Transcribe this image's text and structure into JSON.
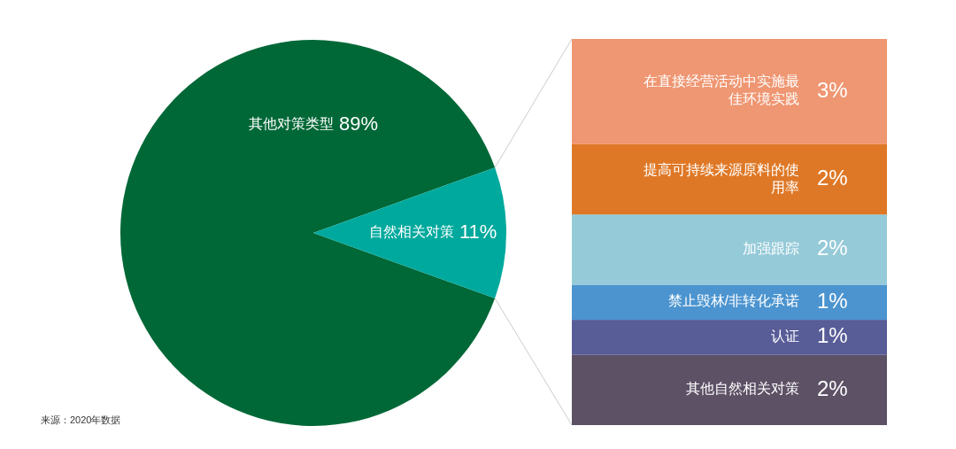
{
  "chart_data": [
    {
      "type": "pie",
      "categories": [
        "其他对策类型",
        "自然相关对策"
      ],
      "values": [
        89,
        11
      ],
      "colors": [
        "#006837",
        "#00a99d"
      ],
      "value_labels": [
        "89%",
        "11%"
      ],
      "annotations": [
        "来源：2020年数据"
      ]
    },
    {
      "type": "bar",
      "stacked": true,
      "categories": [
        null
      ],
      "series": [
        {
          "name": "其他自然相关对策",
          "color": "#5d5166",
          "values": [
            2
          ],
          "value_labels": [
            "2%"
          ]
        },
        {
          "name": "认证",
          "color": "#585c97",
          "values": [
            1
          ],
          "value_labels": [
            "1%"
          ]
        },
        {
          "name": "禁止毁林/非转化承诺",
          "color": "#4b94cf",
          "values": [
            1
          ],
          "value_labels": [
            "1%"
          ]
        },
        {
          "name": "加强跟踪",
          "color": "#95cad8",
          "values": [
            2
          ],
          "value_labels": [
            "2%"
          ]
        },
        {
          "name": "提高可持续来源原料的使用率",
          "color": "#df7826",
          "values": [
            2
          ],
          "value_labels": [
            "2%"
          ]
        },
        {
          "name": "在直接经营活动中实施最佳环境实践",
          "color": "#ef9672",
          "values": [
            3
          ],
          "value_labels": [
            "3%"
          ]
        }
      ]
    }
  ]
}
